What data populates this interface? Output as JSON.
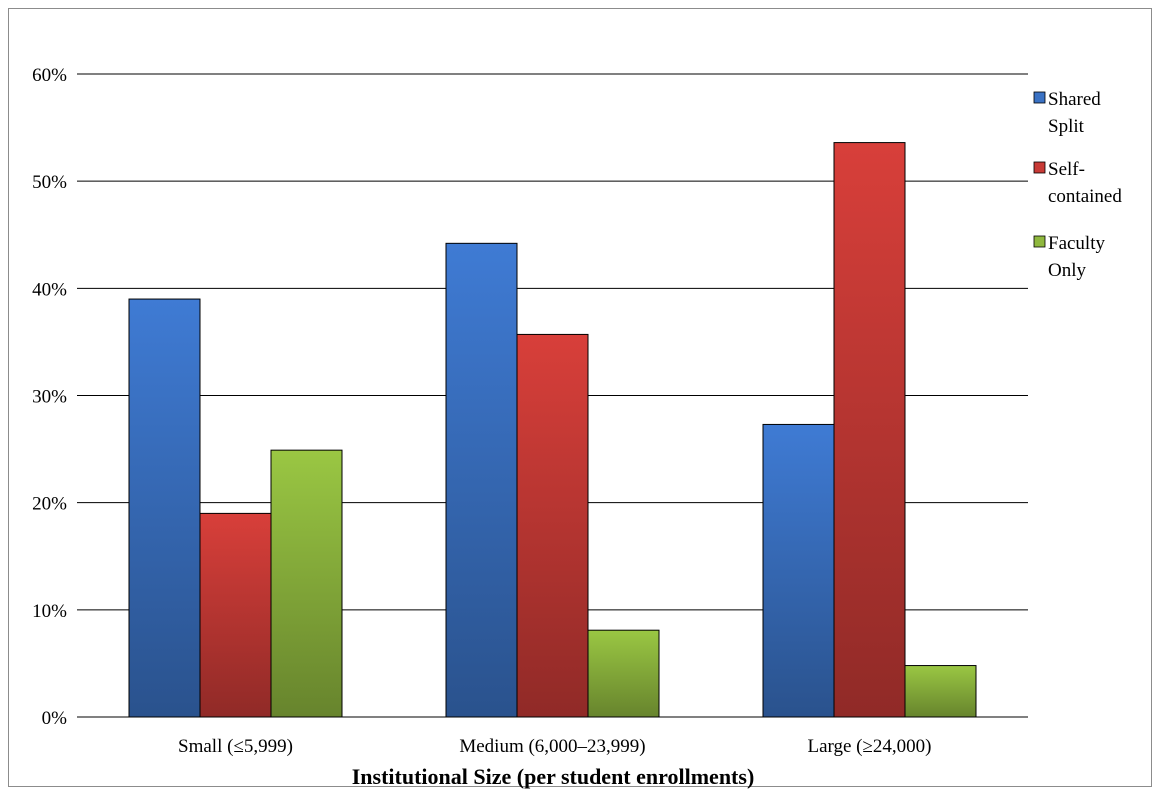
{
  "chart_data": {
    "type": "bar",
    "title": "",
    "xlabel": "Institutional  Size (per student  enrollments)",
    "ylabel": "",
    "ylim": [
      0,
      0.6
    ],
    "yticks": [
      0,
      0.1,
      0.2,
      0.3,
      0.4,
      0.5,
      0.6
    ],
    "ytick_labels": [
      "0%",
      "10%",
      "20%",
      "30%",
      "40%",
      "50%",
      "60%"
    ],
    "grid": true,
    "legend_position": "right",
    "categories": [
      "Small (≤5,999)",
      "Medium (6,000–23,999)",
      "Large (≥24,000)"
    ],
    "series": [
      {
        "name": "Shared Split",
        "legend_lines": [
          "Shared",
          "Split"
        ],
        "color": "#3a72c4",
        "values": [
          0.39,
          0.442,
          0.273
        ]
      },
      {
        "name": "Self-contained",
        "legend_lines": [
          "Self-",
          "contained"
        ],
        "color": "#c83a36",
        "values": [
          0.19,
          0.357,
          0.536
        ]
      },
      {
        "name": "Faculty Only",
        "legend_lines": [
          "Faculty",
          "Only"
        ],
        "color": "#8fb83e",
        "values": [
          0.249,
          0.081,
          0.048
        ]
      }
    ]
  }
}
